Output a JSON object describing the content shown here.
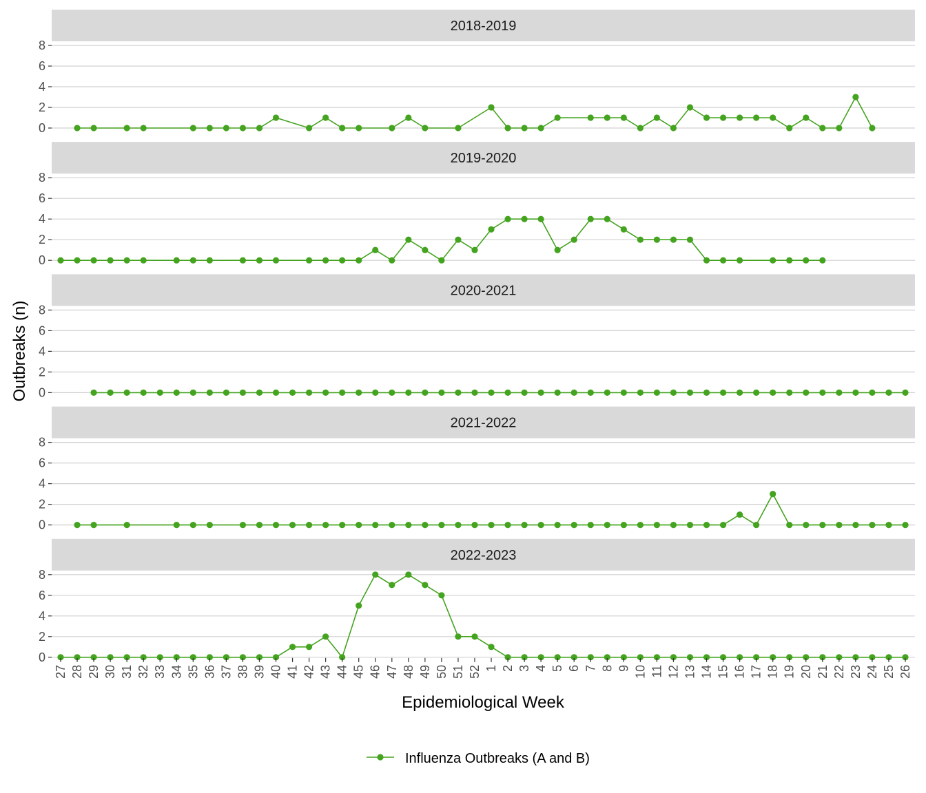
{
  "chart_data": {
    "type": "line",
    "xlabel": "Epidemiological Week",
    "ylabel": "Outbreaks (n)",
    "ylim": [
      0,
      8
    ],
    "yticks": [
      0,
      2,
      4,
      6,
      8
    ],
    "x_categories": [
      "27",
      "28",
      "29",
      "30",
      "31",
      "32",
      "33",
      "34",
      "35",
      "36",
      "37",
      "38",
      "39",
      "40",
      "41",
      "42",
      "43",
      "44",
      "45",
      "46",
      "47",
      "48",
      "49",
      "50",
      "51",
      "52",
      "1",
      "2",
      "3",
      "4",
      "5",
      "6",
      "7",
      "8",
      "9",
      "10",
      "11",
      "12",
      "13",
      "14",
      "15",
      "16",
      "17",
      "18",
      "19",
      "20",
      "21",
      "22",
      "23",
      "24",
      "25",
      "26"
    ],
    "grid": true,
    "legend_position": "bottom",
    "series_color": "#44a31f",
    "legend": [
      "Influenza Outbreaks (A and B)"
    ],
    "panels": [
      {
        "title": "2018-2019",
        "points": [
          [
            "28",
            0
          ],
          [
            "29",
            0
          ],
          [
            "31",
            0
          ],
          [
            "32",
            0
          ],
          [
            "35",
            0
          ],
          [
            "36",
            0
          ],
          [
            "37",
            0
          ],
          [
            "38",
            0
          ],
          [
            "39",
            0
          ],
          [
            "40",
            1
          ],
          [
            "42",
            0
          ],
          [
            "43",
            1
          ],
          [
            "44",
            0
          ],
          [
            "45",
            0
          ],
          [
            "47",
            0
          ],
          [
            "48",
            1
          ],
          [
            "49",
            0
          ],
          [
            "51",
            0
          ],
          [
            "1",
            2
          ],
          [
            "2",
            0
          ],
          [
            "3",
            0
          ],
          [
            "4",
            0
          ],
          [
            "5",
            1
          ],
          [
            "7",
            1
          ],
          [
            "8",
            1
          ],
          [
            "9",
            1
          ],
          [
            "10",
            0
          ],
          [
            "11",
            1
          ],
          [
            "12",
            0
          ],
          [
            "13",
            2
          ],
          [
            "14",
            1
          ],
          [
            "15",
            1
          ],
          [
            "16",
            1
          ],
          [
            "17",
            1
          ],
          [
            "18",
            1
          ],
          [
            "19",
            0
          ],
          [
            "20",
            1
          ],
          [
            "21",
            0
          ],
          [
            "22",
            0
          ],
          [
            "23",
            3
          ],
          [
            "24",
            0
          ]
        ]
      },
      {
        "title": "2019-2020",
        "points": [
          [
            "27",
            0
          ],
          [
            "28",
            0
          ],
          [
            "29",
            0
          ],
          [
            "30",
            0
          ],
          [
            "31",
            0
          ],
          [
            "32",
            0
          ],
          [
            "34",
            0
          ],
          [
            "35",
            0
          ],
          [
            "36",
            0
          ],
          [
            "38",
            0
          ],
          [
            "39",
            0
          ],
          [
            "40",
            0
          ],
          [
            "42",
            0
          ],
          [
            "43",
            0
          ],
          [
            "44",
            0
          ],
          [
            "45",
            0
          ],
          [
            "46",
            1
          ],
          [
            "47",
            0
          ],
          [
            "48",
            2
          ],
          [
            "49",
            1
          ],
          [
            "50",
            0
          ],
          [
            "51",
            2
          ],
          [
            "52",
            1
          ],
          [
            "1",
            3
          ],
          [
            "2",
            4
          ],
          [
            "3",
            4
          ],
          [
            "4",
            4
          ],
          [
            "5",
            1
          ],
          [
            "6",
            2
          ],
          [
            "7",
            4
          ],
          [
            "8",
            4
          ],
          [
            "9",
            3
          ],
          [
            "10",
            2
          ],
          [
            "11",
            2
          ],
          [
            "12",
            2
          ],
          [
            "13",
            2
          ],
          [
            "14",
            0
          ],
          [
            "15",
            0
          ],
          [
            "16",
            0
          ],
          [
            "18",
            0
          ],
          [
            "19",
            0
          ],
          [
            "20",
            0
          ],
          [
            "21",
            0
          ]
        ]
      },
      {
        "title": "2020-2021",
        "points": [
          [
            "29",
            0
          ],
          [
            "30",
            0
          ],
          [
            "31",
            0
          ],
          [
            "32",
            0
          ],
          [
            "33",
            0
          ],
          [
            "34",
            0
          ],
          [
            "35",
            0
          ],
          [
            "36",
            0
          ],
          [
            "37",
            0
          ],
          [
            "38",
            0
          ],
          [
            "39",
            0
          ],
          [
            "40",
            0
          ],
          [
            "41",
            0
          ],
          [
            "42",
            0
          ],
          [
            "43",
            0
          ],
          [
            "44",
            0
          ],
          [
            "45",
            0
          ],
          [
            "46",
            0
          ],
          [
            "47",
            0
          ],
          [
            "48",
            0
          ],
          [
            "49",
            0
          ],
          [
            "50",
            0
          ],
          [
            "51",
            0
          ],
          [
            "52",
            0
          ],
          [
            "1",
            0
          ],
          [
            "2",
            0
          ],
          [
            "3",
            0
          ],
          [
            "4",
            0
          ],
          [
            "5",
            0
          ],
          [
            "6",
            0
          ],
          [
            "7",
            0
          ],
          [
            "8",
            0
          ],
          [
            "9",
            0
          ],
          [
            "10",
            0
          ],
          [
            "11",
            0
          ],
          [
            "12",
            0
          ],
          [
            "13",
            0
          ],
          [
            "14",
            0
          ],
          [
            "15",
            0
          ],
          [
            "16",
            0
          ],
          [
            "17",
            0
          ],
          [
            "18",
            0
          ],
          [
            "19",
            0
          ],
          [
            "20",
            0
          ],
          [
            "21",
            0
          ],
          [
            "22",
            0
          ],
          [
            "23",
            0
          ],
          [
            "24",
            0
          ],
          [
            "25",
            0
          ],
          [
            "26",
            0
          ]
        ]
      },
      {
        "title": "2021-2022",
        "points": [
          [
            "28",
            0
          ],
          [
            "29",
            0
          ],
          [
            "31",
            0
          ],
          [
            "34",
            0
          ],
          [
            "35",
            0
          ],
          [
            "36",
            0
          ],
          [
            "38",
            0
          ],
          [
            "39",
            0
          ],
          [
            "40",
            0
          ],
          [
            "41",
            0
          ],
          [
            "42",
            0
          ],
          [
            "43",
            0
          ],
          [
            "44",
            0
          ],
          [
            "45",
            0
          ],
          [
            "46",
            0
          ],
          [
            "47",
            0
          ],
          [
            "48",
            0
          ],
          [
            "49",
            0
          ],
          [
            "50",
            0
          ],
          [
            "51",
            0
          ],
          [
            "52",
            0
          ],
          [
            "1",
            0
          ],
          [
            "2",
            0
          ],
          [
            "3",
            0
          ],
          [
            "4",
            0
          ],
          [
            "5",
            0
          ],
          [
            "6",
            0
          ],
          [
            "7",
            0
          ],
          [
            "8",
            0
          ],
          [
            "9",
            0
          ],
          [
            "10",
            0
          ],
          [
            "11",
            0
          ],
          [
            "12",
            0
          ],
          [
            "13",
            0
          ],
          [
            "14",
            0
          ],
          [
            "15",
            0
          ],
          [
            "16",
            1
          ],
          [
            "17",
            0
          ],
          [
            "18",
            3
          ],
          [
            "19",
            0
          ],
          [
            "20",
            0
          ],
          [
            "21",
            0
          ],
          [
            "22",
            0
          ],
          [
            "23",
            0
          ],
          [
            "24",
            0
          ],
          [
            "25",
            0
          ],
          [
            "26",
            0
          ]
        ]
      },
      {
        "title": "2022-2023",
        "points": [
          [
            "27",
            0
          ],
          [
            "28",
            0
          ],
          [
            "29",
            0
          ],
          [
            "30",
            0
          ],
          [
            "31",
            0
          ],
          [
            "32",
            0
          ],
          [
            "33",
            0
          ],
          [
            "34",
            0
          ],
          [
            "35",
            0
          ],
          [
            "36",
            0
          ],
          [
            "37",
            0
          ],
          [
            "38",
            0
          ],
          [
            "39",
            0
          ],
          [
            "40",
            0
          ],
          [
            "41",
            1
          ],
          [
            "42",
            1
          ],
          [
            "43",
            2
          ],
          [
            "44",
            0
          ],
          [
            "45",
            5
          ],
          [
            "46",
            8
          ],
          [
            "47",
            7
          ],
          [
            "48",
            8
          ],
          [
            "49",
            7
          ],
          [
            "50",
            6
          ],
          [
            "51",
            2
          ],
          [
            "52",
            2
          ],
          [
            "1",
            1
          ],
          [
            "2",
            0
          ],
          [
            "3",
            0
          ],
          [
            "4",
            0
          ],
          [
            "5",
            0
          ],
          [
            "6",
            0
          ],
          [
            "7",
            0
          ],
          [
            "8",
            0
          ],
          [
            "9",
            0
          ],
          [
            "10",
            0
          ],
          [
            "11",
            0
          ],
          [
            "12",
            0
          ],
          [
            "13",
            0
          ],
          [
            "14",
            0
          ],
          [
            "15",
            0
          ],
          [
            "16",
            0
          ],
          [
            "17",
            0
          ],
          [
            "18",
            0
          ],
          [
            "19",
            0
          ],
          [
            "20",
            0
          ],
          [
            "21",
            0
          ],
          [
            "22",
            0
          ],
          [
            "23",
            0
          ],
          [
            "24",
            0
          ],
          [
            "25",
            0
          ],
          [
            "26",
            0
          ]
        ]
      }
    ]
  }
}
